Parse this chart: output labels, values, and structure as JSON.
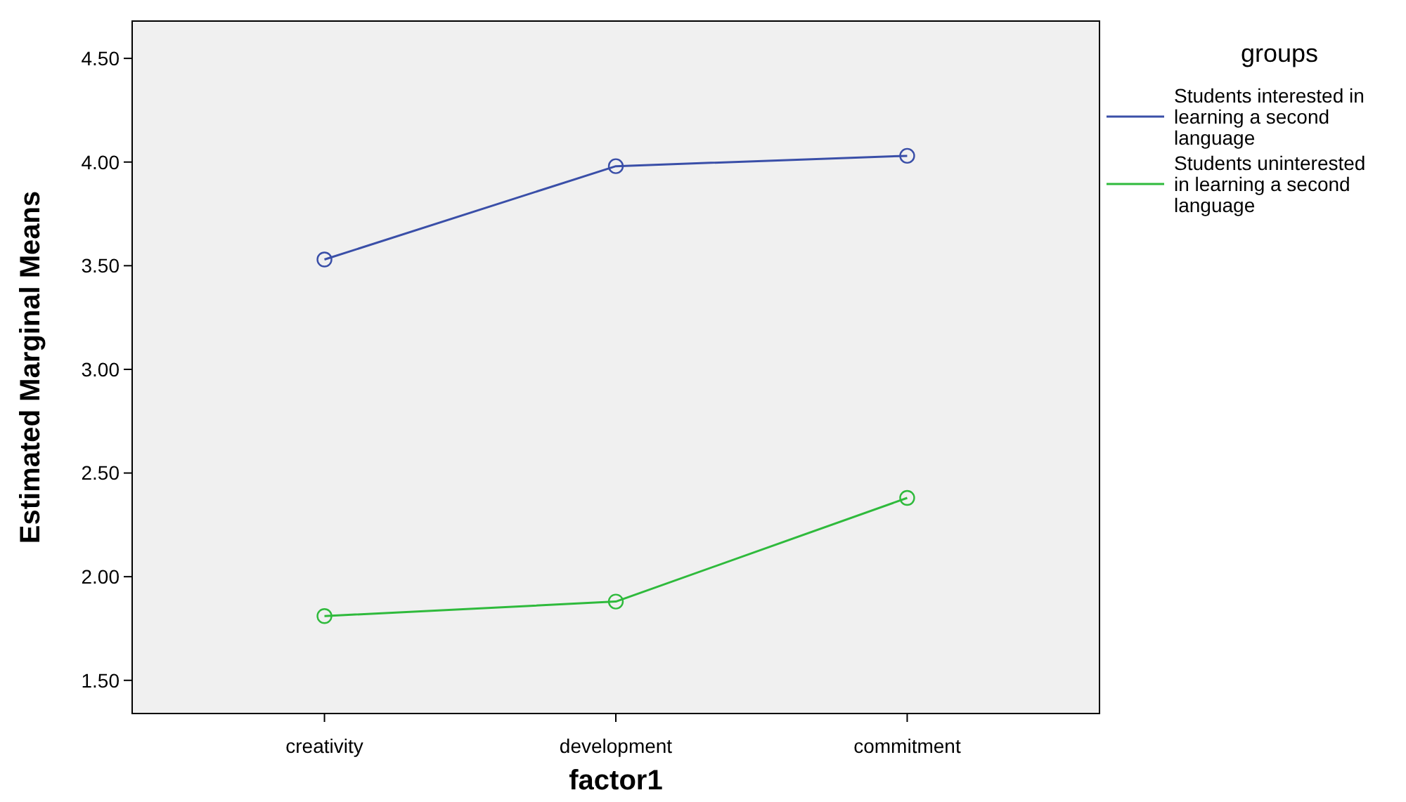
{
  "chart_data": {
    "type": "line",
    "xlabel": "factor1",
    "ylabel": "Estimated Marginal Means",
    "legend_title": "groups",
    "categories": [
      "creativity",
      "development",
      "commitment"
    ],
    "series": [
      {
        "name": "Students interested in learning a second language",
        "color": "#3a4fa8",
        "values": [
          3.53,
          3.98,
          4.03
        ]
      },
      {
        "name": "Students uninterested in learning a second language",
        "color": "#2fba3c",
        "values": [
          1.81,
          1.88,
          2.38
        ]
      }
    ],
    "ylim": [
      1.34,
      4.68
    ],
    "yticks": [
      {
        "value": 1.5,
        "label": "1.50"
      },
      {
        "value": 2,
        "label": "2.00"
      },
      {
        "value": 2.5,
        "label": "2.50"
      },
      {
        "value": 3,
        "label": "3.00"
      },
      {
        "value": 3.5,
        "label": "3.50"
      },
      {
        "value": 4,
        "label": "4.00"
      },
      {
        "value": 4.5,
        "label": "4.50"
      }
    ],
    "marker": "circle",
    "legend": "right",
    "grid": false
  }
}
